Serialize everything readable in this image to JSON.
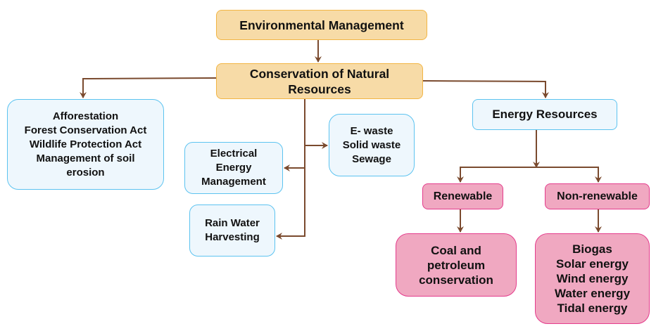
{
  "diagram": {
    "root": "Environmental Management",
    "conservation": "Conservation of Natural Resources",
    "forest": [
      "Afforestation",
      "Forest Conservation Act",
      "Wildlife Protection Act",
      "Management of soil",
      "erosion"
    ],
    "waste": [
      "E- waste",
      "Solid waste",
      "Sewage"
    ],
    "electrical": [
      "Electrical",
      "Energy",
      "Management"
    ],
    "rain": [
      "Rain Water",
      "Harvesting"
    ],
    "energy": "Energy Resources",
    "renewable": "Renewable",
    "non_renewable": "Non-renewable",
    "renewable_items": [
      "Coal and",
      "petroleum",
      "conservation"
    ],
    "non_renewable_items": [
      "Biogas",
      "Solar energy",
      "Wind energy",
      "Water energy",
      "Tidal energy"
    ]
  },
  "colors": {
    "connector": "#7a4a2e",
    "top_fill": "#f7dba7",
    "blue_fill": "#eef7fd",
    "pink_fill": "#f0a8c1"
  }
}
